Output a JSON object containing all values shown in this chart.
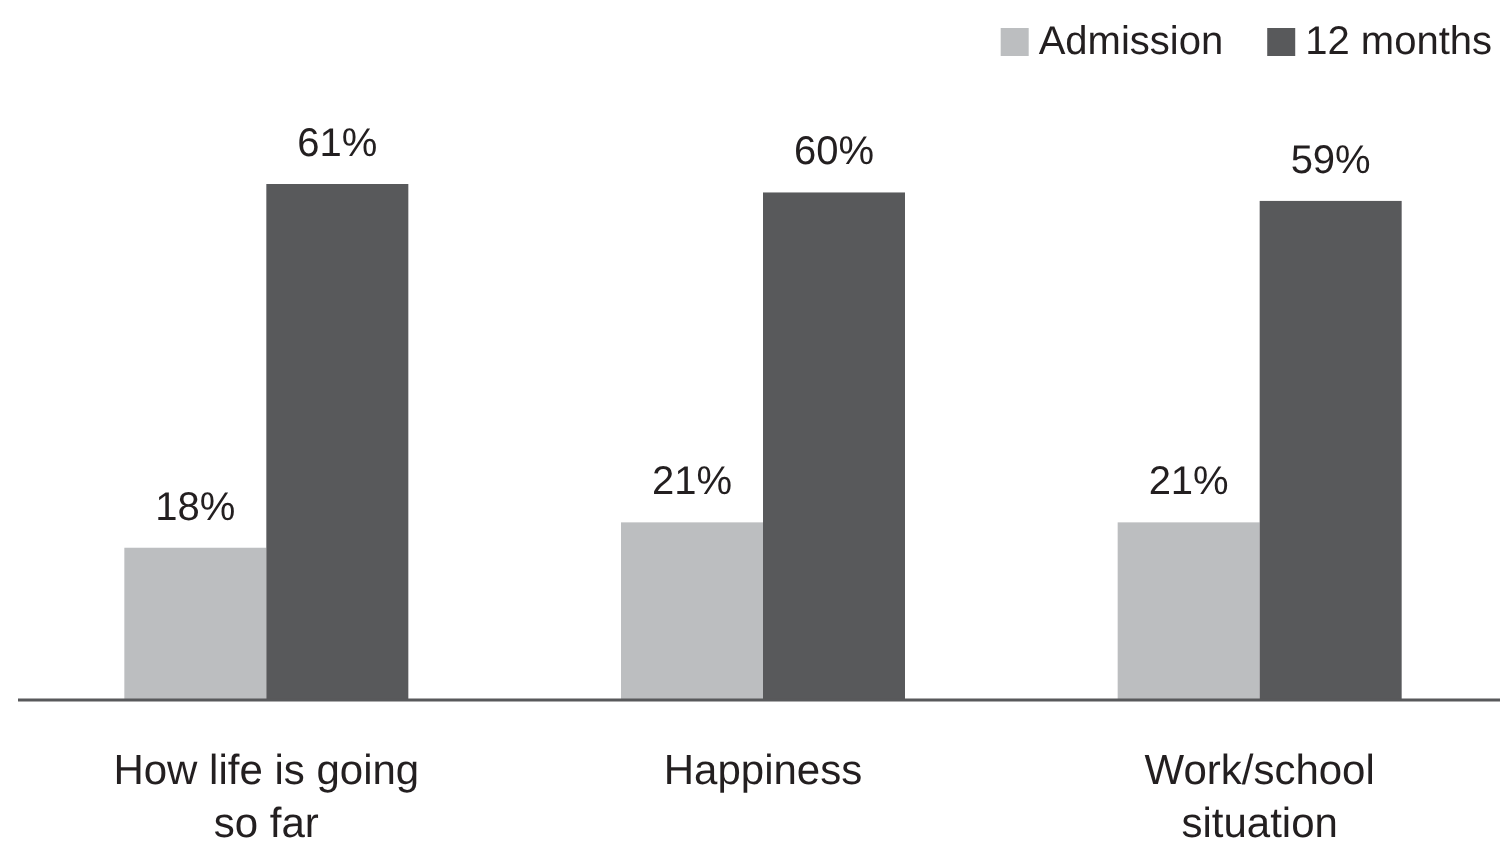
{
  "chart_data": {
    "type": "bar",
    "categories": [
      "How life is going so far",
      "Happiness",
      "Work/school situation"
    ],
    "series": [
      {
        "name": "Admission",
        "color": "#bcbec0",
        "values": [
          18,
          21,
          21
        ],
        "value_labels": [
          "18%",
          "21%",
          "21%"
        ]
      },
      {
        "name": "12 months",
        "color": "#58595b",
        "values": [
          61,
          60,
          59
        ],
        "value_labels": [
          "61%",
          "60%",
          "59%"
        ]
      }
    ],
    "legend": "top right",
    "grid": false
  }
}
